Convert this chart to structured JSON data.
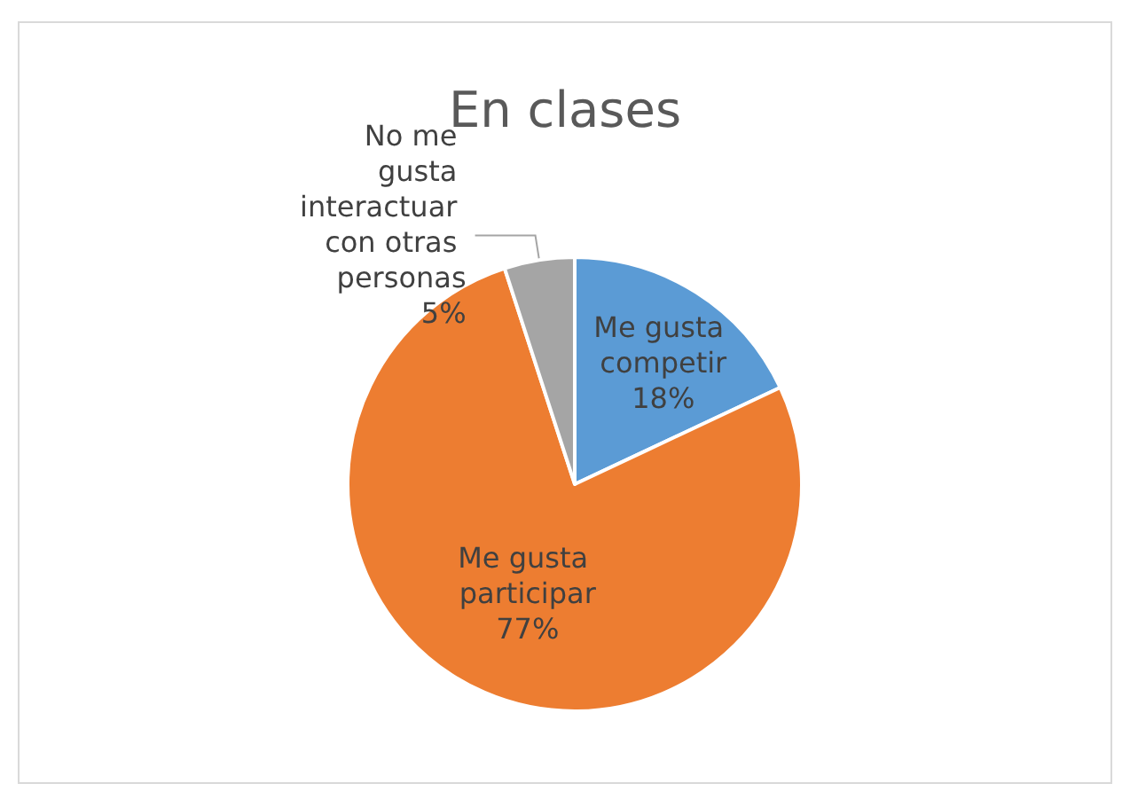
{
  "chart_data": {
    "type": "pie",
    "title": "En clases",
    "categories": [
      "Me gusta competir",
      "Me gusta participar",
      "No me gusta interactuar con otras personas"
    ],
    "values": [
      18,
      77,
      5
    ],
    "colors": [
      "#5b9bd5",
      "#ed7d31",
      "#a5a5a5"
    ],
    "value_labels": [
      "18%",
      "77%",
      "5%"
    ],
    "legend": false
  }
}
